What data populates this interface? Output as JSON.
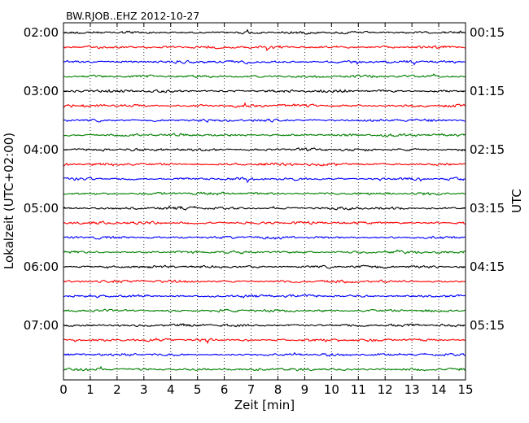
{
  "chart_data": {
    "type": "line",
    "title": "BW.RJOB..EHZ 2012-10-27",
    "xlabel": "Zeit  [min]",
    "ylabel_left": "Lokalzeit (UTC+02:00)",
    "ylabel_right": "UTC",
    "xlim": [
      0,
      15
    ],
    "x_ticks": [
      "0",
      "1",
      "2",
      "3",
      "4",
      "5",
      "6",
      "7",
      "8",
      "9",
      "10",
      "11",
      "12",
      "13",
      "14",
      "15"
    ],
    "x_grid": "dotted-vertical",
    "trace_interval_min": 15,
    "trace_count": 24,
    "trace_colors": [
      "#000000",
      "#ff0000",
      "#0000ff",
      "#008000"
    ],
    "left_ticks": [
      "02:00",
      "03:00",
      "04:00",
      "05:00",
      "06:00",
      "07:00"
    ],
    "right_ticks": [
      "00:15",
      "01:15",
      "02:15",
      "03:15",
      "04:15",
      "05:15"
    ]
  }
}
